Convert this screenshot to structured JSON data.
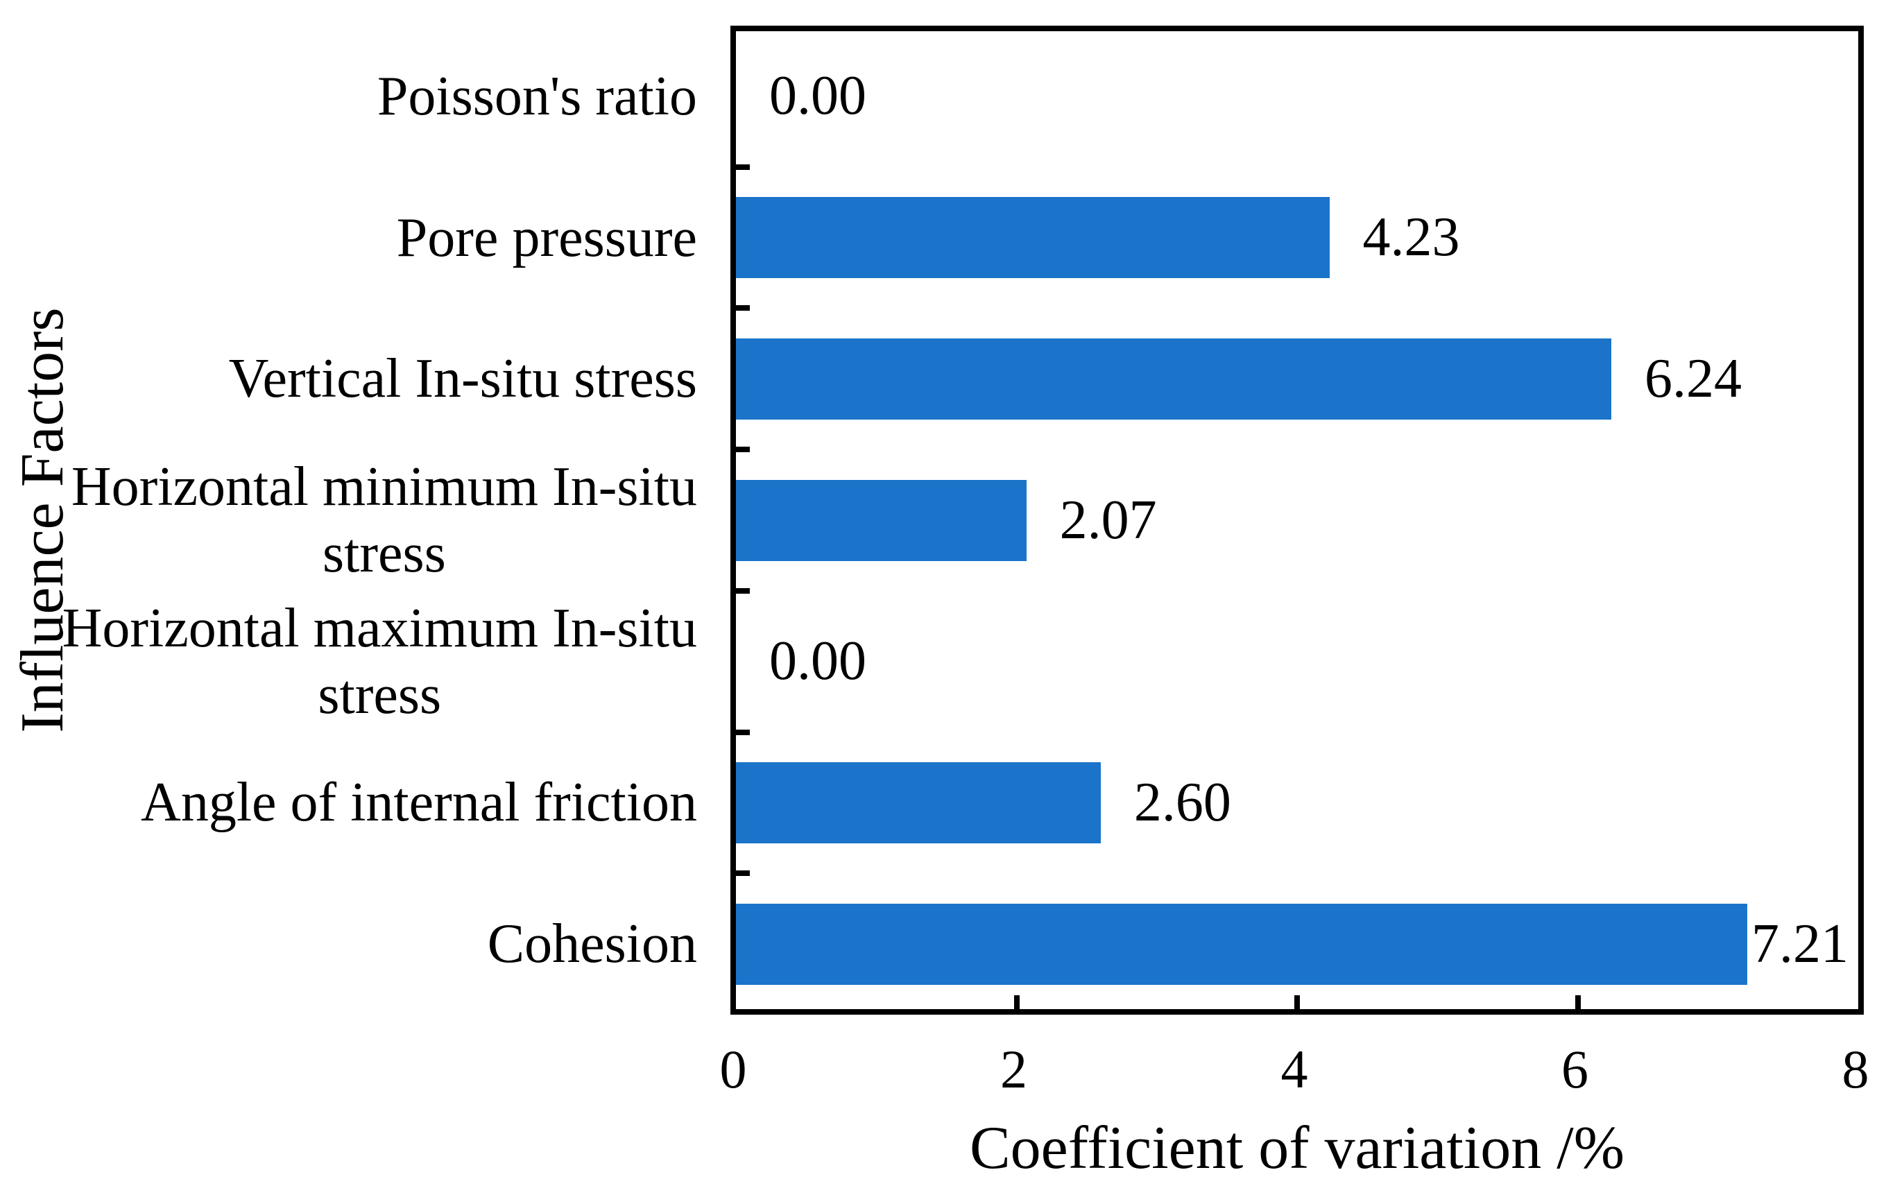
{
  "chart_data": {
    "type": "bar",
    "orientation": "horizontal",
    "xlabel": "Coefficient of variation /%",
    "ylabel": "Influence Factors",
    "categories": [
      "Poisson's ratio",
      "Pore pressure",
      "Vertical In-situ stress",
      "Horizontal minimum In-situ\nstress",
      "Horizontal maximum In-situ\nstress",
      "Angle of internal friction",
      "Cohesion"
    ],
    "values": [
      0.0,
      4.23,
      6.24,
      2.07,
      0.0,
      2.6,
      7.21
    ],
    "value_labels": [
      "0.00",
      "4.23",
      "6.24",
      "2.07",
      "0.00",
      "2.60",
      "7.21"
    ],
    "xlim": [
      0,
      8
    ],
    "x_ticks": [
      "0",
      "2",
      "4",
      "6",
      "8"
    ],
    "bar_color": "#1B74C9",
    "axis_color": "#000000",
    "background": "#FFFFFF",
    "grid": false,
    "legend": null
  }
}
